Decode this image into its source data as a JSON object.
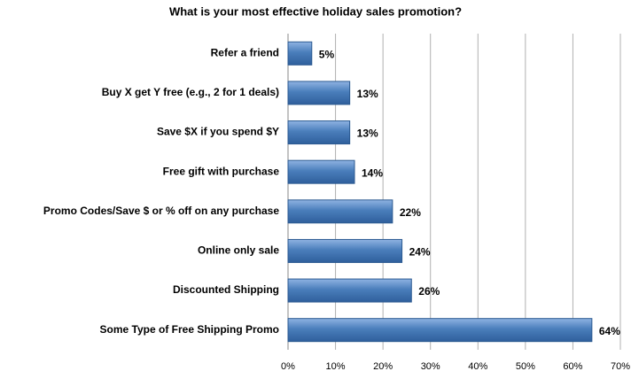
{
  "chart_data": {
    "type": "bar",
    "orientation": "horizontal",
    "title": "What is your most effective holiday sales promotion?",
    "categories": [
      "Refer a friend",
      "Buy X get Y free (e.g., 2 for 1 deals)",
      "Save $X if you spend $Y",
      "Free gift with purchase",
      "Promo Codes/Save $ or % off on any purchase",
      "Online only sale",
      "Discounted Shipping",
      "Some Type of Free Shipping Promo"
    ],
    "values": [
      5,
      13,
      13,
      14,
      22,
      24,
      26,
      64
    ],
    "value_labels": [
      "5%",
      "13%",
      "13%",
      "14%",
      "22%",
      "24%",
      "26%",
      "64%"
    ],
    "color": "#4a7ebb",
    "xlim": [
      0,
      70
    ],
    "xticks": [
      {
        "value": 0,
        "label": "0%"
      },
      {
        "value": 10,
        "label": "10%"
      },
      {
        "value": 20,
        "label": "20%"
      },
      {
        "value": 30,
        "label": "30%"
      },
      {
        "value": 40,
        "label": "40%"
      },
      {
        "value": 50,
        "label": "50%"
      },
      {
        "value": 60,
        "label": "60%"
      },
      {
        "value": 70,
        "label": "70%"
      }
    ],
    "grid": true
  }
}
